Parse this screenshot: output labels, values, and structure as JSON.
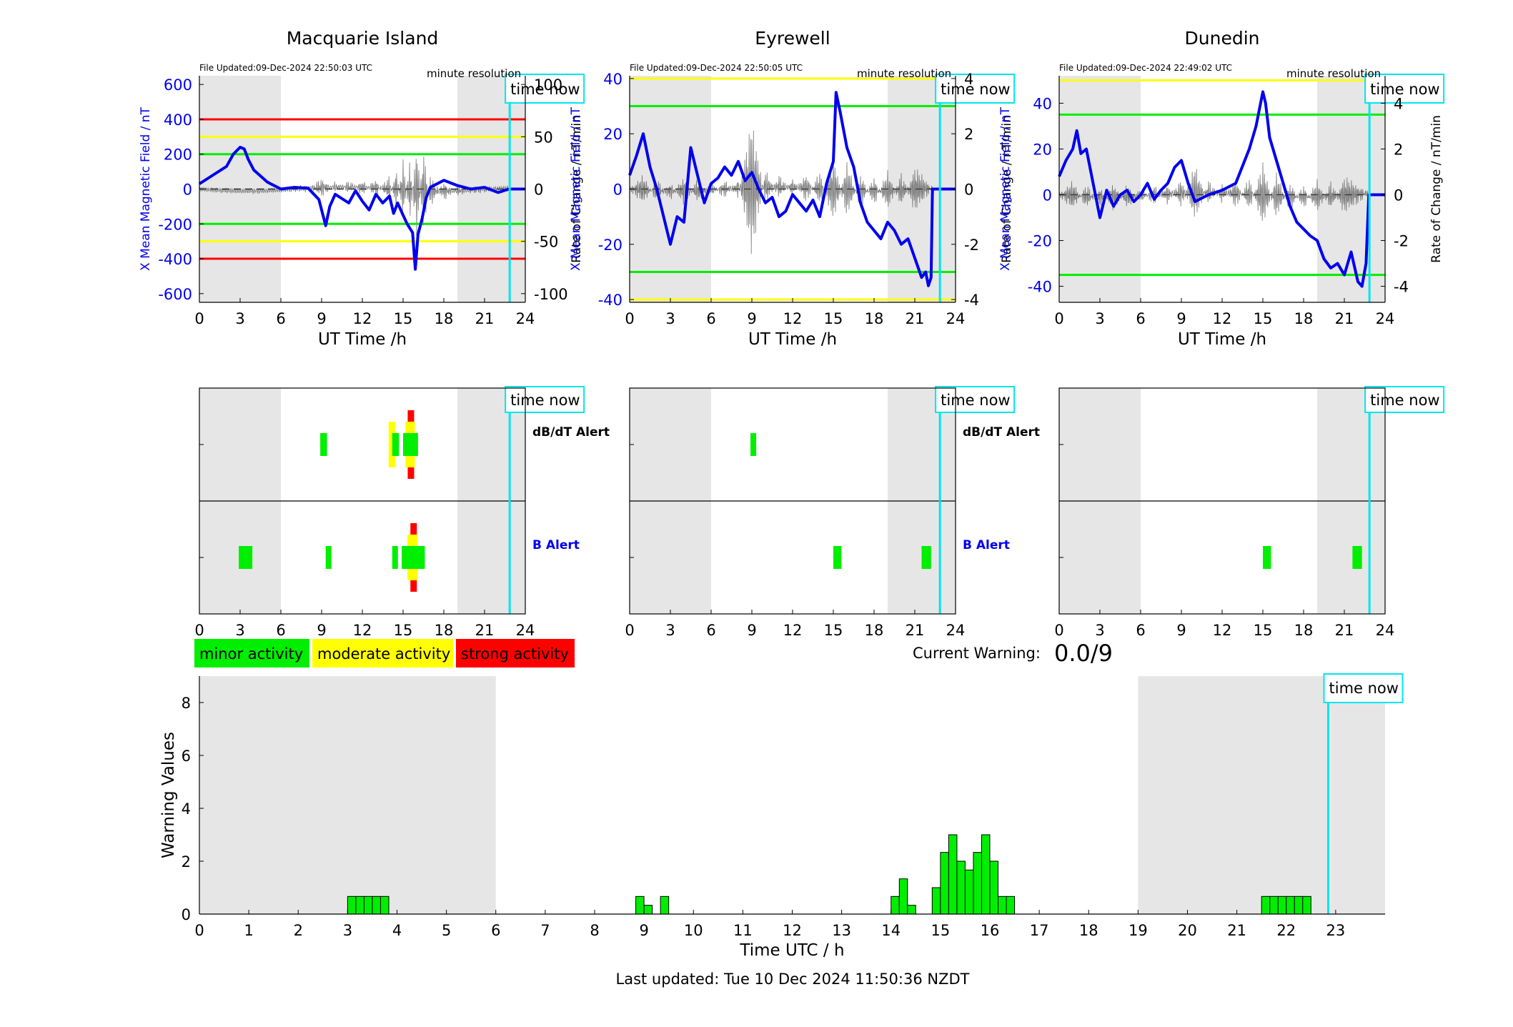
{
  "colors": {
    "shade": "#e6e6e6",
    "field_line": "#0000ee",
    "rate_line": "#555555",
    "time_now": "#00e5ee",
    "minor": "#00ee00",
    "moderate": "#ffff00",
    "strong": "#ff0000",
    "blue_text": "#0000ee"
  },
  "charts": {
    "time_now_label": "time now",
    "resolution_label": "minute resolution",
    "xlabel": "UT Time /h",
    "ylabel_left": "X Mean Magnetic Field / nT",
    "ylabel_right": "Rate of Change / nT/min",
    "alert_rows": [
      "dB/dT Alert",
      "B Alert"
    ]
  },
  "legend": {
    "minor": "minor activity",
    "moderate": "moderate activity",
    "strong": "strong activity"
  },
  "current_warning": {
    "label": "Current Warning:",
    "value": "0.0/9"
  },
  "footer": {
    "last_updated": "Last updated: Tue 10 Dec 2024 11:50:36 NZDT"
  },
  "chart_data": [
    {
      "type": "line",
      "title": "Macquarie Island",
      "file_updated": "File Updated:09-Dec-2024 22:50:03 UTC",
      "xlabel": "UT Time /h",
      "ylabel": "X Mean Magnetic Field / nT",
      "y2label": "Rate of Change / nT/min",
      "xlim": [
        0,
        24
      ],
      "xticks": [
        0,
        3,
        6,
        9,
        12,
        15,
        18,
        21,
        24
      ],
      "ylim": [
        -650,
        650
      ],
      "yticks": [
        -600,
        -400,
        -200,
        0,
        200,
        400,
        600
      ],
      "y2lim": [
        -108.3,
        108.3
      ],
      "y2ticks": [
        -100,
        -50,
        0,
        50,
        100
      ],
      "shaded_ranges": [
        [
          0,
          6
        ],
        [
          19,
          24
        ]
      ],
      "time_now": 22.85,
      "threshold_lines": [
        {
          "value": 400,
          "level": "strong"
        },
        {
          "value": 300,
          "level": "moderate"
        },
        {
          "value": 200,
          "level": "minor"
        },
        {
          "value": -200,
          "level": "minor"
        },
        {
          "value": -300,
          "level": "moderate"
        },
        {
          "value": -400,
          "level": "strong"
        }
      ],
      "series": [
        {
          "role": "field",
          "x": [
            0,
            1,
            2,
            2.5,
            3,
            3.3,
            3.6,
            4,
            5,
            6,
            7,
            8,
            8.8,
            9.1,
            9.3,
            9.6,
            10,
            11,
            11.5,
            12,
            12.5,
            13,
            13.5,
            14,
            14.3,
            14.6,
            15,
            15.3,
            15.7,
            15.9,
            16.1,
            16.4,
            16.7,
            17,
            18,
            19,
            20,
            21,
            22,
            22.8,
            22.85,
            24
          ],
          "y": [
            30,
            80,
            130,
            200,
            240,
            230,
            170,
            110,
            40,
            0,
            10,
            5,
            -60,
            -150,
            -210,
            -100,
            -30,
            -80,
            -10,
            -70,
            -120,
            -30,
            -80,
            -40,
            -140,
            -80,
            -150,
            -200,
            -250,
            -460,
            -260,
            -170,
            -50,
            10,
            50,
            20,
            0,
            10,
            -20,
            0,
            0,
            0
          ]
        },
        {
          "role": "rate",
          "x": [
            0,
            2,
            4,
            6,
            8,
            9,
            10,
            11,
            12,
            13,
            14,
            14.5,
            15,
            15.5,
            16,
            16.5,
            17,
            18,
            19,
            20,
            22.8
          ],
          "y": [
            0,
            1,
            -1,
            0,
            2,
            -8,
            4,
            -5,
            6,
            -8,
            12,
            -20,
            28,
            -30,
            45,
            -40,
            15,
            -8,
            4,
            -2,
            0
          ]
        }
      ],
      "alerts": {
        "dbdt": [
          {
            "start": 8.9,
            "end": 9.4,
            "level": "minor"
          },
          {
            "start": 14.2,
            "end": 14.7,
            "level": "minor",
            "peak": "moderate"
          },
          {
            "start": 15.0,
            "end": 16.1,
            "level": "minor",
            "peak": "strong"
          }
        ],
        "b": [
          {
            "start": 2.9,
            "end": 3.9,
            "level": "minor"
          },
          {
            "start": 9.3,
            "end": 9.7,
            "level": "minor"
          },
          {
            "start": 14.2,
            "end": 14.6,
            "level": "minor"
          },
          {
            "start": 14.9,
            "end": 16.6,
            "level": "minor",
            "peak": "strong"
          }
        ]
      }
    },
    {
      "type": "line",
      "title": "Eyrewell",
      "file_updated": "File Updated:09-Dec-2024 22:50:05 UTC",
      "xlabel": "UT Time /h",
      "ylabel": "X Mean Magnetic Field / nT",
      "y2label": "Rate of Change / nT/min",
      "xlim": [
        0,
        24
      ],
      "xticks": [
        0,
        3,
        6,
        9,
        12,
        15,
        18,
        21,
        24
      ],
      "ylim": [
        -41,
        41
      ],
      "yticks": [
        -40,
        -20,
        0,
        20,
        40
      ],
      "y2lim": [
        -4.1,
        4.1
      ],
      "y2ticks": [
        -4,
        -2,
        0,
        2,
        4
      ],
      "shaded_ranges": [
        [
          0,
          6
        ],
        [
          19,
          24
        ]
      ],
      "time_now": 22.85,
      "threshold_lines": [
        {
          "value": 40,
          "level": "moderate"
        },
        {
          "value": 30,
          "level": "minor"
        },
        {
          "value": -30,
          "level": "minor"
        },
        {
          "value": -40,
          "level": "moderate"
        }
      ],
      "series": [
        {
          "role": "field",
          "x": [
            0,
            0.5,
            1,
            1.5,
            2,
            2.5,
            3,
            3.5,
            4,
            4.5,
            5,
            5.5,
            6,
            6.5,
            7,
            7.5,
            8,
            8.5,
            9,
            9.5,
            10,
            10.5,
            11,
            11.5,
            12,
            12.5,
            13,
            13.5,
            14,
            14.5,
            15,
            15.2,
            15.5,
            16,
            16.5,
            17,
            17.5,
            18,
            18.5,
            19,
            19.5,
            20,
            20.5,
            21,
            21.5,
            21.8,
            22,
            22.2,
            22.3,
            24
          ],
          "y": [
            5,
            12,
            20,
            8,
            0,
            -10,
            -20,
            -10,
            -12,
            15,
            5,
            -5,
            2,
            4,
            8,
            5,
            10,
            3,
            6,
            0,
            -5,
            -3,
            -10,
            -8,
            -2,
            -5,
            -8,
            -4,
            -10,
            2,
            10,
            35,
            28,
            15,
            8,
            -5,
            -12,
            -15,
            -18,
            -12,
            -15,
            -20,
            -18,
            -25,
            -32,
            -30,
            -35,
            -32,
            0,
            0
          ]
        },
        {
          "role": "rate",
          "x": [
            0,
            1,
            2,
            3,
            4,
            5,
            6,
            7,
            8,
            9,
            10,
            11,
            12,
            13,
            14,
            15,
            16,
            17,
            18,
            19,
            20,
            21,
            22.3
          ],
          "y": [
            0,
            0.5,
            -0.4,
            0.3,
            -0.5,
            0.4,
            -0.2,
            0.3,
            -0.3,
            2.5,
            -0.6,
            0.4,
            -0.3,
            0.5,
            -0.6,
            1.2,
            -1.0,
            0.6,
            -0.5,
            0.7,
            -0.6,
            0.8,
            0
          ]
        }
      ],
      "alerts": {
        "dbdt": [
          {
            "start": 8.9,
            "end": 9.2,
            "level": "minor"
          }
        ],
        "b": [
          {
            "start": 15.0,
            "end": 15.6,
            "level": "minor"
          },
          {
            "start": 21.5,
            "end": 22.2,
            "level": "minor"
          }
        ]
      }
    },
    {
      "type": "line",
      "title": "Dunedin",
      "file_updated": "File Updated:09-Dec-2024 22:49:02 UTC",
      "xlabel": "UT Time /h",
      "ylabel": "X Mean Magnetic Field / nT",
      "y2label": "Rate of Change / nT/min",
      "xlim": [
        0,
        24
      ],
      "xticks": [
        0,
        3,
        6,
        9,
        12,
        15,
        18,
        21,
        24
      ],
      "ylim": [
        -47,
        52
      ],
      "yticks": [
        -40,
        -20,
        0,
        20,
        40
      ],
      "y2lim": [
        -4.7,
        5.2
      ],
      "y2ticks": [
        -4,
        -2,
        0,
        2,
        4
      ],
      "shaded_ranges": [
        [
          0,
          6
        ],
        [
          19,
          24
        ]
      ],
      "time_now": 22.85,
      "threshold_lines": [
        {
          "value": 50,
          "level": "moderate"
        },
        {
          "value": 35,
          "level": "minor"
        },
        {
          "value": -35,
          "level": "minor"
        }
      ],
      "series": [
        {
          "role": "field",
          "x": [
            0,
            0.5,
            1,
            1.3,
            1.6,
            2,
            2.5,
            3,
            3.5,
            4,
            4.5,
            5,
            5.5,
            6,
            6.5,
            7,
            7.5,
            8,
            8.5,
            9,
            9.5,
            10,
            11,
            12,
            13,
            14,
            14.5,
            15,
            15.2,
            15.5,
            16,
            16.5,
            17,
            17.5,
            18,
            18.5,
            19,
            19.5,
            20,
            20.5,
            21,
            21.5,
            22,
            22.3,
            22.6,
            22.8,
            24
          ],
          "y": [
            8,
            15,
            20,
            28,
            18,
            20,
            5,
            -10,
            2,
            -5,
            0,
            2,
            -3,
            0,
            5,
            -2,
            2,
            5,
            12,
            15,
            5,
            -3,
            0,
            2,
            5,
            20,
            30,
            45,
            40,
            25,
            15,
            5,
            -5,
            -12,
            -15,
            -18,
            -20,
            -28,
            -32,
            -30,
            -35,
            -25,
            -38,
            -40,
            -30,
            0,
            0
          ]
        },
        {
          "role": "rate",
          "x": [
            0,
            1,
            2,
            3,
            4,
            5,
            6,
            7,
            8,
            9,
            10,
            11,
            12,
            13,
            14,
            15,
            16,
            17,
            18,
            19,
            20,
            21,
            22.8
          ],
          "y": [
            0,
            0.6,
            -0.5,
            0.4,
            -0.6,
            0.5,
            -0.3,
            0.4,
            -0.4,
            0.6,
            -1.2,
            0.5,
            -0.4,
            0.6,
            -0.7,
            1.4,
            -1.0,
            0.6,
            -0.5,
            0.7,
            -0.6,
            0.8,
            0
          ]
        }
      ],
      "alerts": {
        "dbdt": [],
        "b": [
          {
            "start": 15.0,
            "end": 15.6,
            "level": "minor"
          },
          {
            "start": 21.6,
            "end": 22.3,
            "level": "minor"
          }
        ]
      }
    },
    {
      "type": "bar",
      "title": "",
      "xlabel": "Time UTC / h",
      "ylabel": "Warning Values",
      "xlim": [
        0,
        24
      ],
      "xticks": [
        0,
        1,
        2,
        3,
        4,
        5,
        6,
        7,
        8,
        9,
        10,
        11,
        12,
        13,
        14,
        15,
        16,
        17,
        18,
        19,
        20,
        21,
        22,
        23
      ],
      "ylim": [
        0,
        9
      ],
      "yticks": [
        0,
        2,
        4,
        6,
        8
      ],
      "shaded_ranges": [
        [
          0,
          6
        ],
        [
          19,
          24
        ]
      ],
      "time_now": 22.85,
      "bar_width_h": 0.1667,
      "bars": [
        {
          "x": 3.0,
          "v": 0.667
        },
        {
          "x": 3.167,
          "v": 0.667
        },
        {
          "x": 3.333,
          "v": 0.667
        },
        {
          "x": 3.5,
          "v": 0.667
        },
        {
          "x": 3.667,
          "v": 0.667
        },
        {
          "x": 8.833,
          "v": 0.667
        },
        {
          "x": 9.0,
          "v": 0.333
        },
        {
          "x": 9.333,
          "v": 0.667
        },
        {
          "x": 14.0,
          "v": 0.667
        },
        {
          "x": 14.167,
          "v": 1.333
        },
        {
          "x": 14.333,
          "v": 0.333
        },
        {
          "x": 14.833,
          "v": 1.0
        },
        {
          "x": 15.0,
          "v": 2.333
        },
        {
          "x": 15.167,
          "v": 3.0
        },
        {
          "x": 15.333,
          "v": 2.0
        },
        {
          "x": 15.5,
          "v": 1.667
        },
        {
          "x": 15.667,
          "v": 2.333
        },
        {
          "x": 15.833,
          "v": 3.0
        },
        {
          "x": 16.0,
          "v": 2.0
        },
        {
          "x": 16.167,
          "v": 0.667
        },
        {
          "x": 16.333,
          "v": 0.667
        },
        {
          "x": 21.5,
          "v": 0.667
        },
        {
          "x": 21.667,
          "v": 0.667
        },
        {
          "x": 21.833,
          "v": 0.667
        },
        {
          "x": 22.0,
          "v": 0.667
        },
        {
          "x": 22.167,
          "v": 0.667
        },
        {
          "x": 22.333,
          "v": 0.667
        }
      ]
    }
  ]
}
